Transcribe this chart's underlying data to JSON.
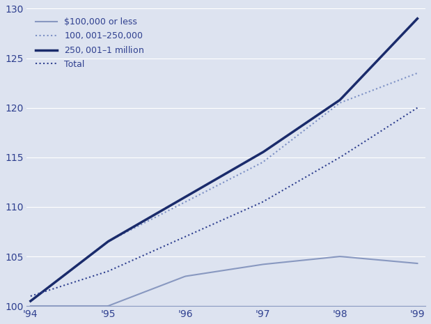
{
  "background_color": "#dde3f0",
  "x_labels": [
    "'94",
    "'95",
    "'96",
    "'97",
    "'98",
    "'99"
  ],
  "x_values": [
    0,
    1,
    2,
    3,
    4,
    5
  ],
  "ylim": [
    100,
    130
  ],
  "yticks": [
    100,
    105,
    110,
    115,
    120,
    125,
    130
  ],
  "series": [
    {
      "label": "$100,000 or less",
      "color": "#8898c0",
      "linewidth": 1.5,
      "linestyle": "solid",
      "values": [
        100.0,
        100.0,
        103.0,
        104.2,
        105.0,
        104.3
      ]
    },
    {
      "label": "$100,001–$250,000",
      "color": "#7b8fc4",
      "linewidth": 1.5,
      "linestyle": "dotted",
      "values": [
        100.5,
        106.5,
        110.5,
        114.5,
        120.5,
        123.5
      ]
    },
    {
      "label": "$250,001–$1 million",
      "color": "#1a2b6b",
      "linewidth": 2.5,
      "linestyle": "solid",
      "values": [
        100.5,
        106.5,
        111.0,
        115.5,
        120.8,
        129.0
      ]
    },
    {
      "label": "Total",
      "color": "#2e3f8f",
      "linewidth": 1.5,
      "linestyle": "dotted",
      "values": [
        101.0,
        103.5,
        107.0,
        110.5,
        115.0,
        120.0
      ]
    }
  ]
}
